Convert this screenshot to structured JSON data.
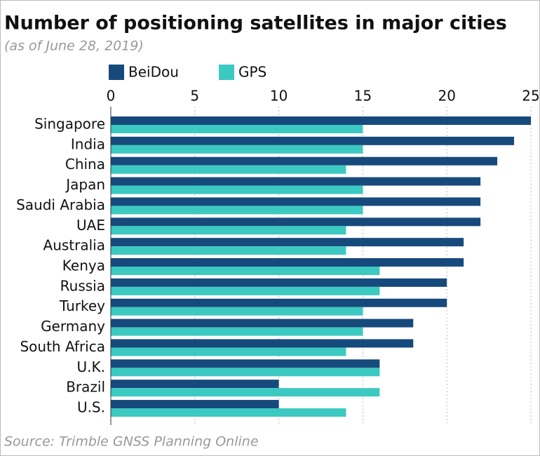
{
  "chart_data": {
    "type": "bar",
    "orientation": "horizontal",
    "title": "Number of positioning satellites in major cities",
    "subtitle": "(as of June 28, 2019)",
    "source": "Source: Trimble GNSS Planning Online",
    "categories": [
      "Singapore",
      "India",
      "China",
      "Japan",
      "Saudi Arabia",
      "UAE",
      "Australia",
      "Kenya",
      "Russia",
      "Turkey",
      "Germany",
      "South Africa",
      "U.K.",
      "Brazil",
      "U.S."
    ],
    "series": [
      {
        "name": "BeiDou",
        "color": "#174a7c",
        "values": [
          25,
          24,
          23,
          22,
          22,
          22,
          21,
          21,
          20,
          20,
          18,
          18,
          16,
          10,
          10
        ]
      },
      {
        "name": "GPS",
        "color": "#3cc9c1",
        "values": [
          15,
          15,
          14,
          15,
          15,
          14,
          14,
          16,
          16,
          15,
          15,
          14,
          16,
          16,
          14
        ]
      }
    ],
    "xlim": [
      0,
      25
    ],
    "xticks": [
      0,
      5,
      10,
      15,
      20,
      25
    ],
    "grid": true,
    "legend": "top-left"
  }
}
